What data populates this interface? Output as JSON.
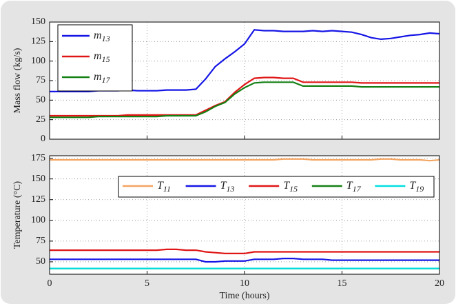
{
  "chart_data": [
    {
      "type": "line",
      "ylabel": "Mass flow (kg/s)",
      "x": [
        0,
        0.5,
        1,
        1.5,
        2,
        2.5,
        3,
        3.5,
        4,
        4.5,
        5,
        5.5,
        6,
        6.5,
        7,
        7.5,
        8,
        8.5,
        9,
        9.5,
        10,
        10.5,
        11,
        11.5,
        12,
        12.5,
        13,
        13.5,
        14,
        14.5,
        15,
        15.5,
        16,
        16.5,
        17,
        17.5,
        18,
        18.5,
        19,
        19.5,
        20
      ],
      "xlim": [
        0,
        20
      ],
      "xticks": [
        0,
        5,
        10,
        15,
        20
      ],
      "ylim": [
        0,
        150
      ],
      "yticks": [
        0,
        25,
        50,
        75,
        100,
        125,
        150
      ],
      "grid": true,
      "legend": "upper left",
      "series": [
        {
          "name": "m13",
          "color": "#1515e6",
          "values": [
            61,
            61,
            61,
            61,
            61,
            62,
            62,
            62,
            63,
            62,
            62,
            62,
            63,
            63,
            63,
            64,
            77,
            93,
            103,
            112,
            122,
            140,
            139,
            139,
            138,
            138,
            138,
            139,
            138,
            139,
            138,
            137,
            134,
            130,
            128,
            129,
            131,
            133,
            134,
            136,
            135
          ]
        },
        {
          "name": "m15",
          "color": "#e01515",
          "values": [
            30,
            30,
            30,
            30,
            30,
            30,
            30,
            30,
            31,
            31,
            31,
            31,
            31,
            31,
            31,
            31,
            37,
            43,
            48,
            60,
            70,
            78,
            79,
            79,
            78,
            78,
            73,
            73,
            73,
            73,
            73,
            73,
            72,
            72,
            72,
            72,
            72,
            72,
            72,
            72,
            72
          ]
        },
        {
          "name": "m17",
          "color": "#138013",
          "values": [
            28,
            28,
            28,
            28,
            28,
            29,
            29,
            29,
            29,
            29,
            29,
            29,
            30,
            30,
            30,
            30,
            35,
            42,
            47,
            58,
            66,
            72,
            73,
            73,
            73,
            73,
            68,
            68,
            68,
            68,
            68,
            68,
            67,
            67,
            67,
            67,
            67,
            67,
            67,
            67,
            67
          ]
        }
      ]
    },
    {
      "type": "line",
      "ylabel": "Temperature (°C)",
      "xlabel": "Time (hours)",
      "x": [
        0,
        0.5,
        1,
        1.5,
        2,
        2.5,
        3,
        3.5,
        4,
        4.5,
        5,
        5.5,
        6,
        6.5,
        7,
        7.5,
        8,
        8.5,
        9,
        9.5,
        10,
        10.5,
        11,
        11.5,
        12,
        12.5,
        13,
        13.5,
        14,
        14.5,
        15,
        15.5,
        16,
        16.5,
        17,
        17.5,
        18,
        18.5,
        19,
        19.5,
        20
      ],
      "xlim": [
        0,
        20
      ],
      "xticks": [
        0,
        5,
        10,
        15,
        20
      ],
      "ylim": [
        35,
        178
      ],
      "yticks": [
        50,
        75,
        100,
        125,
        150,
        175
      ],
      "grid": true,
      "legend": "upper right",
      "series": [
        {
          "name": "T11",
          "color": "#f4a460",
          "values": [
            173,
            173,
            173,
            173,
            173,
            173,
            173,
            173,
            173,
            173,
            173,
            173,
            173,
            173,
            173,
            173,
            173,
            173,
            173,
            173,
            173,
            173,
            173,
            173,
            174,
            174,
            174,
            173,
            173,
            173,
            173,
            173,
            173,
            173,
            174,
            174,
            173,
            173,
            173,
            172,
            173
          ]
        },
        {
          "name": "T13",
          "color": "#1515e6",
          "values": [
            53,
            53,
            53,
            53,
            53,
            53,
            53,
            53,
            53,
            53,
            53,
            53,
            53,
            53,
            53,
            53,
            50,
            50,
            51,
            51,
            51,
            53,
            53,
            53,
            54,
            54,
            53,
            53,
            53,
            52,
            52,
            52,
            52,
            52,
            52,
            52,
            52,
            52,
            52,
            52,
            52
          ]
        },
        {
          "name": "T15",
          "color": "#e01515",
          "values": [
            64,
            64,
            64,
            64,
            64,
            64,
            64,
            64,
            64,
            64,
            64,
            64,
            65,
            65,
            64,
            64,
            62,
            61,
            60,
            60,
            60,
            62,
            62,
            62,
            62,
            62,
            62,
            62,
            62,
            62,
            62,
            62,
            62,
            62,
            62,
            62,
            62,
            62,
            62,
            62,
            62
          ]
        },
        {
          "name": "T17",
          "color": "#138013",
          "values": [
            42,
            42,
            42,
            42,
            42,
            42,
            42,
            42,
            42,
            42,
            42,
            42,
            42,
            42,
            42,
            42,
            42,
            42,
            42,
            42,
            42,
            42,
            42,
            42,
            42,
            42,
            42,
            42,
            42,
            42,
            42,
            42,
            42,
            42,
            42,
            42,
            42,
            42,
            42,
            42,
            42
          ]
        },
        {
          "name": "T19",
          "color": "#00dede",
          "values": [
            42,
            42,
            42,
            42,
            42,
            42,
            42,
            42,
            42,
            42,
            42,
            42,
            42,
            42,
            42,
            42,
            42,
            42,
            42,
            42,
            42,
            42,
            42,
            42,
            42,
            42,
            42,
            42,
            42,
            42,
            42,
            42,
            42,
            42,
            42,
            42,
            42,
            42,
            42,
            42,
            42
          ]
        }
      ]
    }
  ]
}
